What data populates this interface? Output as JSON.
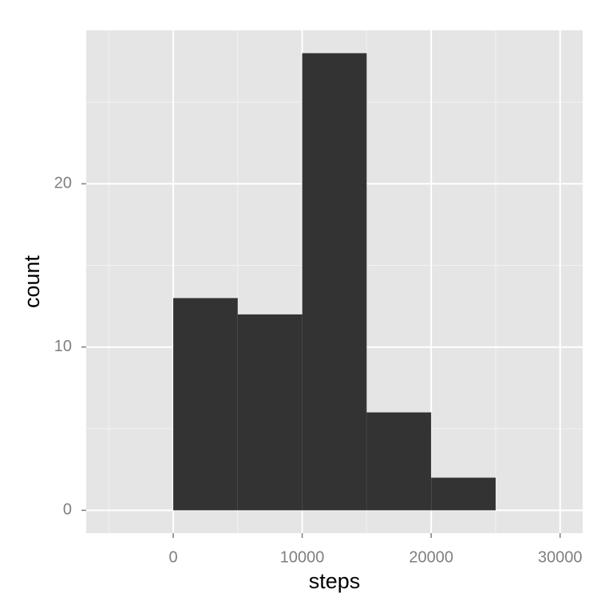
{
  "chart_data": {
    "type": "histogram",
    "x_label": "steps",
    "y_label": "count",
    "bins": [
      0,
      5000,
      10000,
      15000,
      20000,
      25000
    ],
    "values": [
      13,
      12,
      28,
      6,
      2
    ],
    "color": "#333333",
    "xlim": [
      -6750,
      31750
    ],
    "xticks": [
      0,
      10000,
      20000,
      30000
    ],
    "xminor": [
      -5000,
      5000,
      15000,
      25000
    ],
    "ylim": [
      -1.4,
      29.4
    ],
    "yticks": [
      0,
      10,
      20
    ],
    "yminor": [
      5,
      15,
      25
    ],
    "grid": true
  }
}
